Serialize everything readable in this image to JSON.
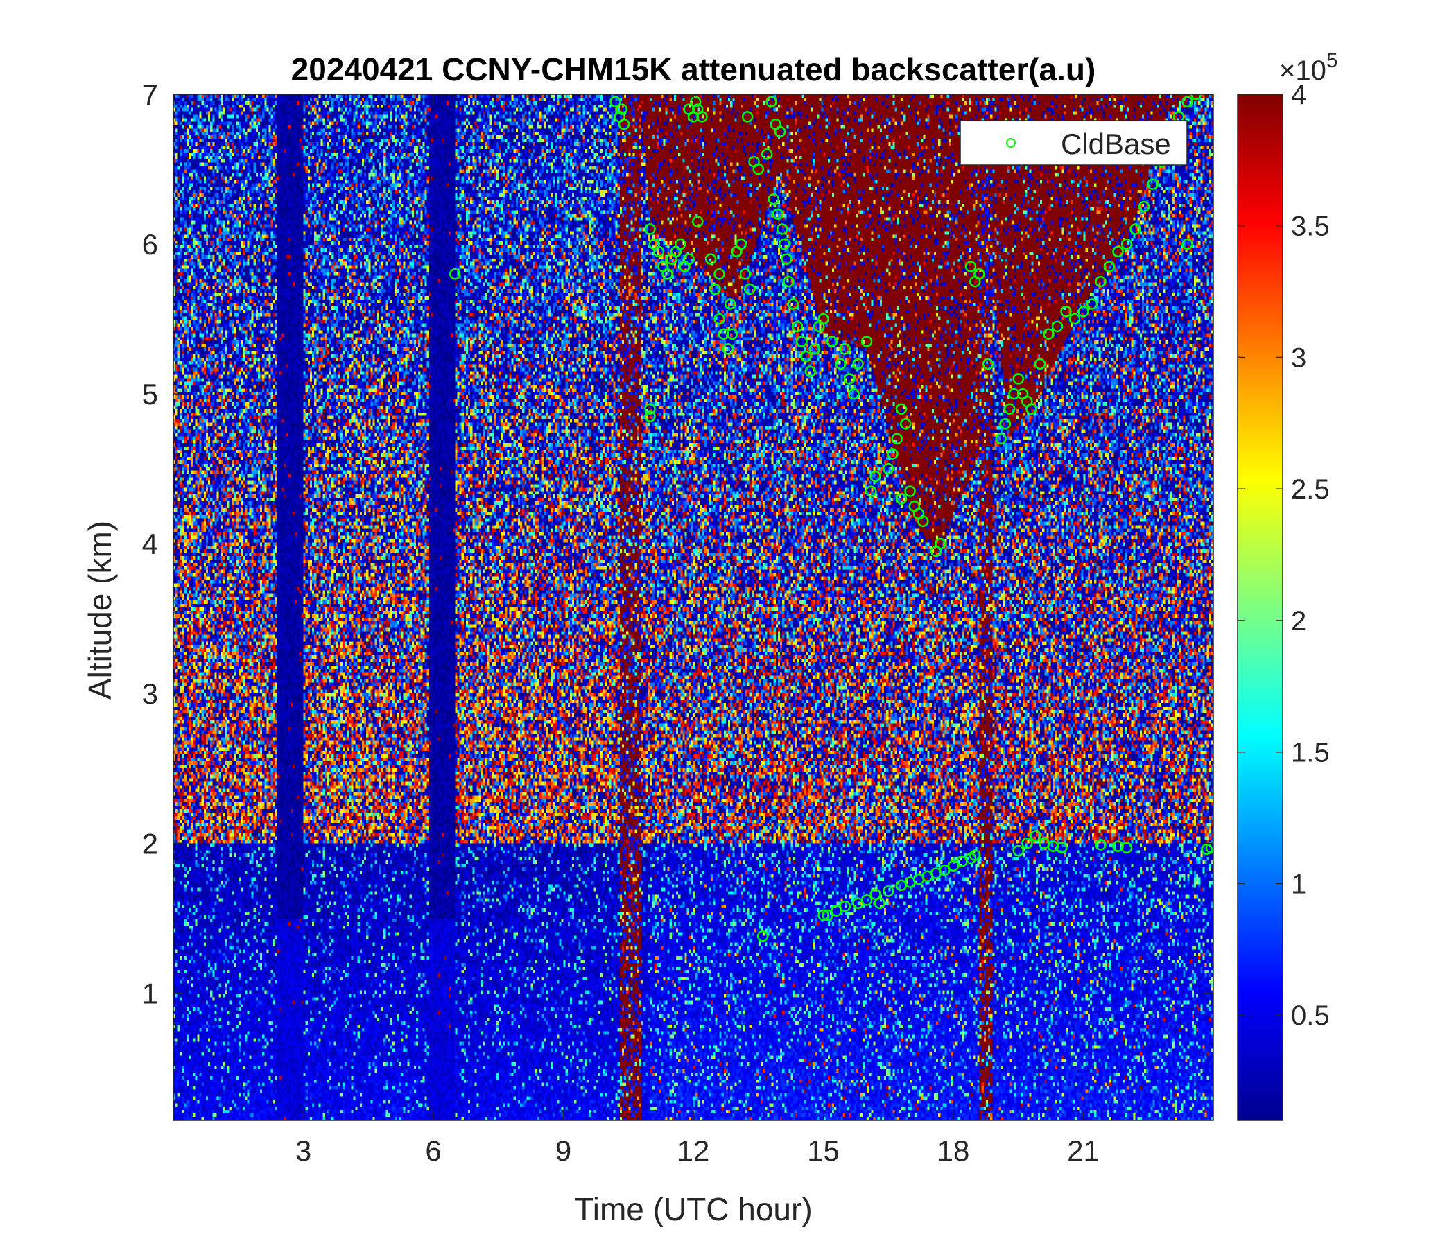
{
  "chart_data": {
    "type": "heatmap",
    "title": "20240421 CCNY-CHM15K attenuated backscatter(a.u)",
    "xlabel": "Time (UTC hour)",
    "ylabel": "Altitude (km)",
    "xlim": [
      0,
      24
    ],
    "ylim": [
      0.15,
      7
    ],
    "xticks": [
      3,
      6,
      9,
      12,
      15,
      18,
      21
    ],
    "xtick_labels": [
      "3",
      "6",
      "9",
      "12",
      "15",
      "18",
      "21"
    ],
    "yticks": [
      1,
      2,
      3,
      4,
      5,
      6,
      7
    ],
    "ytick_labels": [
      "1",
      "2",
      "3",
      "4",
      "5",
      "6",
      "7"
    ],
    "colorbar": {
      "colormap": "jet",
      "range": [
        0.1,
        4.0
      ],
      "ticks": [
        0.5,
        1,
        1.5,
        2,
        2.5,
        3,
        3.5,
        4
      ],
      "tick_labels": [
        "0.5",
        "1",
        "1.5",
        "2",
        "2.5",
        "3",
        "3.5",
        "4"
      ],
      "exponent_label": "×10",
      "exponent": "5"
    },
    "legend": {
      "entries": [
        "CldBase"
      ],
      "placement": "top-right",
      "marker_color": "#00ff00",
      "marker": "circle-open"
    },
    "low_signal_gaps_hours": [
      [
        2.4,
        3.0
      ],
      [
        5.9,
        6.5
      ]
    ],
    "saturated_bands_hours": [
      [
        10.3,
        10.8
      ],
      [
        18.6,
        18.9
      ]
    ],
    "upper_cloud_regions": [
      {
        "time_start": 10.8,
        "time_end": 18.6,
        "base_km": [
          [
            10.8,
            7.0
          ],
          [
            11.0,
            6.1
          ],
          [
            12.0,
            5.9
          ],
          [
            13.0,
            5.6
          ],
          [
            14.0,
            6.5
          ],
          [
            15.0,
            5.4
          ],
          [
            16.0,
            5.3
          ],
          [
            17.0,
            4.2
          ],
          [
            17.6,
            3.9
          ],
          [
            18.6,
            4.6
          ]
        ]
      },
      {
        "time_start": 18.9,
        "time_end": 24.0,
        "base_km": [
          [
            18.9,
            5.8
          ],
          [
            19.3,
            4.7
          ],
          [
            20.0,
            5.0
          ],
          [
            21.0,
            5.6
          ],
          [
            22.0,
            6.0
          ],
          [
            23.0,
            6.9
          ],
          [
            24.0,
            7.0
          ]
        ]
      }
    ],
    "series": [
      {
        "name": "CldBase",
        "marker_color": "#00ff00",
        "x": [
          10.2,
          10.3,
          10.4,
          10.35,
          6.5,
          11.0,
          11.1,
          11.2,
          11.3,
          11.4,
          11.5,
          11.6,
          11.7,
          11.8,
          11.9,
          11.0,
          11.0,
          11.9,
          12.0,
          12.05,
          12.1,
          12.2,
          12.1,
          12.4,
          12.5,
          12.6,
          12.7,
          12.8,
          12.9,
          12.85,
          12.6,
          13.0,
          13.1,
          13.2,
          13.3,
          13.5,
          13.4,
          13.25,
          13.8,
          13.9,
          14.0,
          13.7,
          13.85,
          13.95,
          14.05,
          14.1,
          14.15,
          14.2,
          14.3,
          14.4,
          14.5,
          14.6,
          14.7,
          14.8,
          14.9,
          15.0,
          15.2,
          15.4,
          15.5,
          15.6,
          15.7,
          15.8,
          16.0,
          16.5,
          16.6,
          16.7,
          16.8,
          16.9,
          17.0,
          17.1,
          17.2,
          17.3,
          16.8,
          16.2,
          16.1,
          17.7,
          17.6,
          15.1,
          15.3,
          15.5,
          15.8,
          16.0,
          16.2,
          16.5,
          16.8,
          17.0,
          17.2,
          17.4,
          17.6,
          17.8,
          18.0,
          18.2,
          18.4,
          18.5,
          19.1,
          19.2,
          19.3,
          19.4,
          19.5,
          19.6,
          19.7,
          19.8,
          20.0,
          20.2,
          20.4,
          20.6,
          20.8,
          21.0,
          21.2,
          21.4,
          21.6,
          21.8,
          22.0,
          22.2,
          22.4,
          22.6,
          22.8,
          23.0,
          23.2,
          23.4,
          23.6,
          23.4,
          18.4,
          18.5,
          18.6,
          18.8,
          19.5,
          19.7,
          19.9,
          20.1,
          20.3,
          20.5,
          21.4,
          21.8,
          22.0,
          23.85,
          23.95,
          15.0,
          16.3,
          13.6
        ],
        "y": [
          6.95,
          6.85,
          6.8,
          6.9,
          5.8,
          6.1,
          6.0,
          5.95,
          5.85,
          5.8,
          5.9,
          5.95,
          6.0,
          5.85,
          5.9,
          4.9,
          4.85,
          6.9,
          6.85,
          6.95,
          6.9,
          6.85,
          6.15,
          5.9,
          5.7,
          5.5,
          5.4,
          5.3,
          5.4,
          5.6,
          5.8,
          5.95,
          6.0,
          5.8,
          5.7,
          6.5,
          6.55,
          6.85,
          6.95,
          6.8,
          6.75,
          6.6,
          6.3,
          6.2,
          6.1,
          6.0,
          5.9,
          5.75,
          5.6,
          5.45,
          5.35,
          5.25,
          5.15,
          5.3,
          5.45,
          5.5,
          5.35,
          5.2,
          5.3,
          5.1,
          5.0,
          5.2,
          5.35,
          4.5,
          4.6,
          4.7,
          4.9,
          4.8,
          4.35,
          4.25,
          4.2,
          4.15,
          4.3,
          4.45,
          4.35,
          4.0,
          3.95,
          1.52,
          1.55,
          1.58,
          1.6,
          1.62,
          1.66,
          1.68,
          1.72,
          1.74,
          1.76,
          1.78,
          1.8,
          1.82,
          1.85,
          1.88,
          1.9,
          1.92,
          4.7,
          4.8,
          4.9,
          5.0,
          5.1,
          5.0,
          4.95,
          4.9,
          5.2,
          5.4,
          5.45,
          5.55,
          5.5,
          5.55,
          5.6,
          5.75,
          5.85,
          5.95,
          6.0,
          6.1,
          6.25,
          6.4,
          6.55,
          6.75,
          6.85,
          6.95,
          7.0,
          6.0,
          5.85,
          5.75,
          5.8,
          5.2,
          1.95,
          2.0,
          2.05,
          2.0,
          1.98,
          1.97,
          1.99,
          1.98,
          1.97,
          1.96,
          1.97,
          1.52,
          1.6,
          1.38
        ]
      }
    ]
  }
}
